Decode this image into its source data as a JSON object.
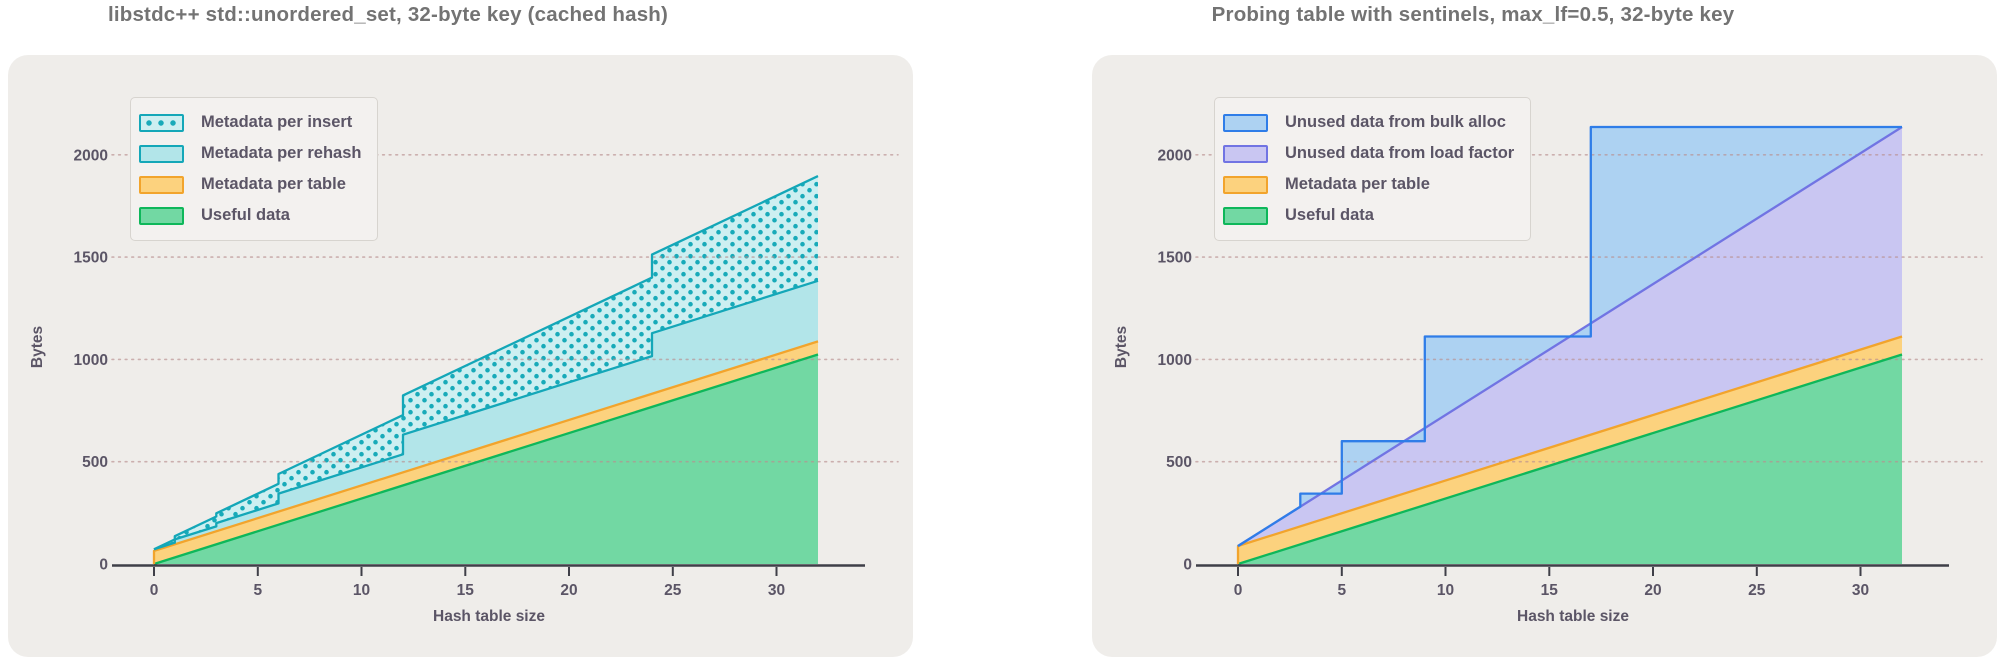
{
  "colors": {
    "page_bg": "#ffffff",
    "panel_bg": "#efedea",
    "title_text": "#737373",
    "tick_text": "#5b5566",
    "axis_line": "#3f3f48",
    "grid_line": "#b98f8f",
    "legend_bg": "#f3f1ef",
    "legend_border": "#d7d4cf"
  },
  "chart_data": [
    {
      "type": "area",
      "title": "libstdc++ std::unordered_set, 32-byte key (cached hash)",
      "xlabel": "Hash table size",
      "ylabel": "Bytes",
      "xticks": [
        0,
        5,
        10,
        15,
        20,
        25,
        30
      ],
      "yticks": [
        0,
        500,
        1000,
        1500,
        2000
      ],
      "xlim": [
        0,
        32
      ],
      "ylim": [
        0,
        2250
      ],
      "grid": "horizontal-dotted",
      "legend_position": "upper-left",
      "stacking": "series stacked bottom-to-top; boundary points are absolute cumulative bytes [table_size, bytes]; duplicated x = rehash jump",
      "series": [
        {
          "name": "Useful data",
          "fill": "#72d8a3",
          "stroke": "#0eb75a",
          "boundary": [
            [
              0,
              0
            ],
            [
              32,
              1024
            ]
          ]
        },
        {
          "name": "Metadata per table",
          "fill": "#fcd27e",
          "stroke": "#f2a42c",
          "left_edge": true,
          "boundary": [
            [
              0,
              64
            ],
            [
              32,
              1088
            ]
          ]
        },
        {
          "name": "Metadata per rehash",
          "fill": "#b2e5e9",
          "stroke": "#14a7b8",
          "boundary": [
            [
              0,
              72
            ],
            [
              1,
              104
            ],
            [
              1,
              120
            ],
            [
              3,
              184
            ],
            [
              3,
              200
            ],
            [
              6,
              296
            ],
            [
              6,
              344
            ],
            [
              12,
              536
            ],
            [
              12,
              632
            ],
            [
              24,
              1016
            ],
            [
              24,
              1128
            ],
            [
              32,
              1384
            ]
          ]
        },
        {
          "name": "Metadata per insert",
          "fill": "#cdeff1",
          "stroke": "#14a7b8",
          "pattern": "dots",
          "dot_color": "#18aab9",
          "boundary": [
            [
              0,
              72
            ],
            [
              1,
              120
            ],
            [
              1,
              136
            ],
            [
              3,
              232
            ],
            [
              3,
              248
            ],
            [
              6,
              392
            ],
            [
              6,
              440
            ],
            [
              12,
              728
            ],
            [
              12,
              824
            ],
            [
              24,
              1400
            ],
            [
              24,
              1512
            ],
            [
              32,
              1896
            ]
          ]
        }
      ]
    },
    {
      "type": "area",
      "title": "Probing table with sentinels, max_lf=0.5, 32-byte key",
      "xlabel": "Hash table size",
      "ylabel": "Bytes",
      "xticks": [
        0,
        5,
        10,
        15,
        20,
        25,
        30
      ],
      "yticks": [
        0,
        500,
        1000,
        1500,
        2000
      ],
      "xlim": [
        0,
        32
      ],
      "ylim": [
        0,
        2250
      ],
      "grid": "horizontal-dotted",
      "legend_position": "upper-left",
      "stacking": "series stacked bottom-to-top; boundary points are absolute cumulative bytes [table_size, bytes]; duplicated x = capacity doubling jump",
      "series": [
        {
          "name": "Useful data",
          "fill": "#72d8a3",
          "stroke": "#0eb75a",
          "boundary": [
            [
              0,
              0
            ],
            [
              32,
              1024
            ]
          ]
        },
        {
          "name": "Metadata per table",
          "fill": "#fcd27e",
          "stroke": "#f2a42c",
          "left_edge": true,
          "boundary": [
            [
              0,
              88
            ],
            [
              32,
              1112
            ]
          ]
        },
        {
          "name": "Unused data from load factor",
          "fill": "#c9c6f2",
          "stroke": "#7174e3",
          "boundary": [
            [
              0,
              88
            ],
            [
              32,
              2136
            ]
          ]
        },
        {
          "name": "Unused data from bulk alloc",
          "fill": "#add2f2",
          "stroke": "#2f7de8",
          "boundary": [
            [
              0,
              88
            ],
            [
              3,
              280
            ],
            [
              3,
              344
            ],
            [
              5,
              344
            ],
            [
              5,
              600
            ],
            [
              9,
              600
            ],
            [
              9,
              1112
            ],
            [
              17,
              1112
            ],
            [
              17,
              2136
            ],
            [
              32,
              2136
            ]
          ]
        }
      ]
    }
  ]
}
